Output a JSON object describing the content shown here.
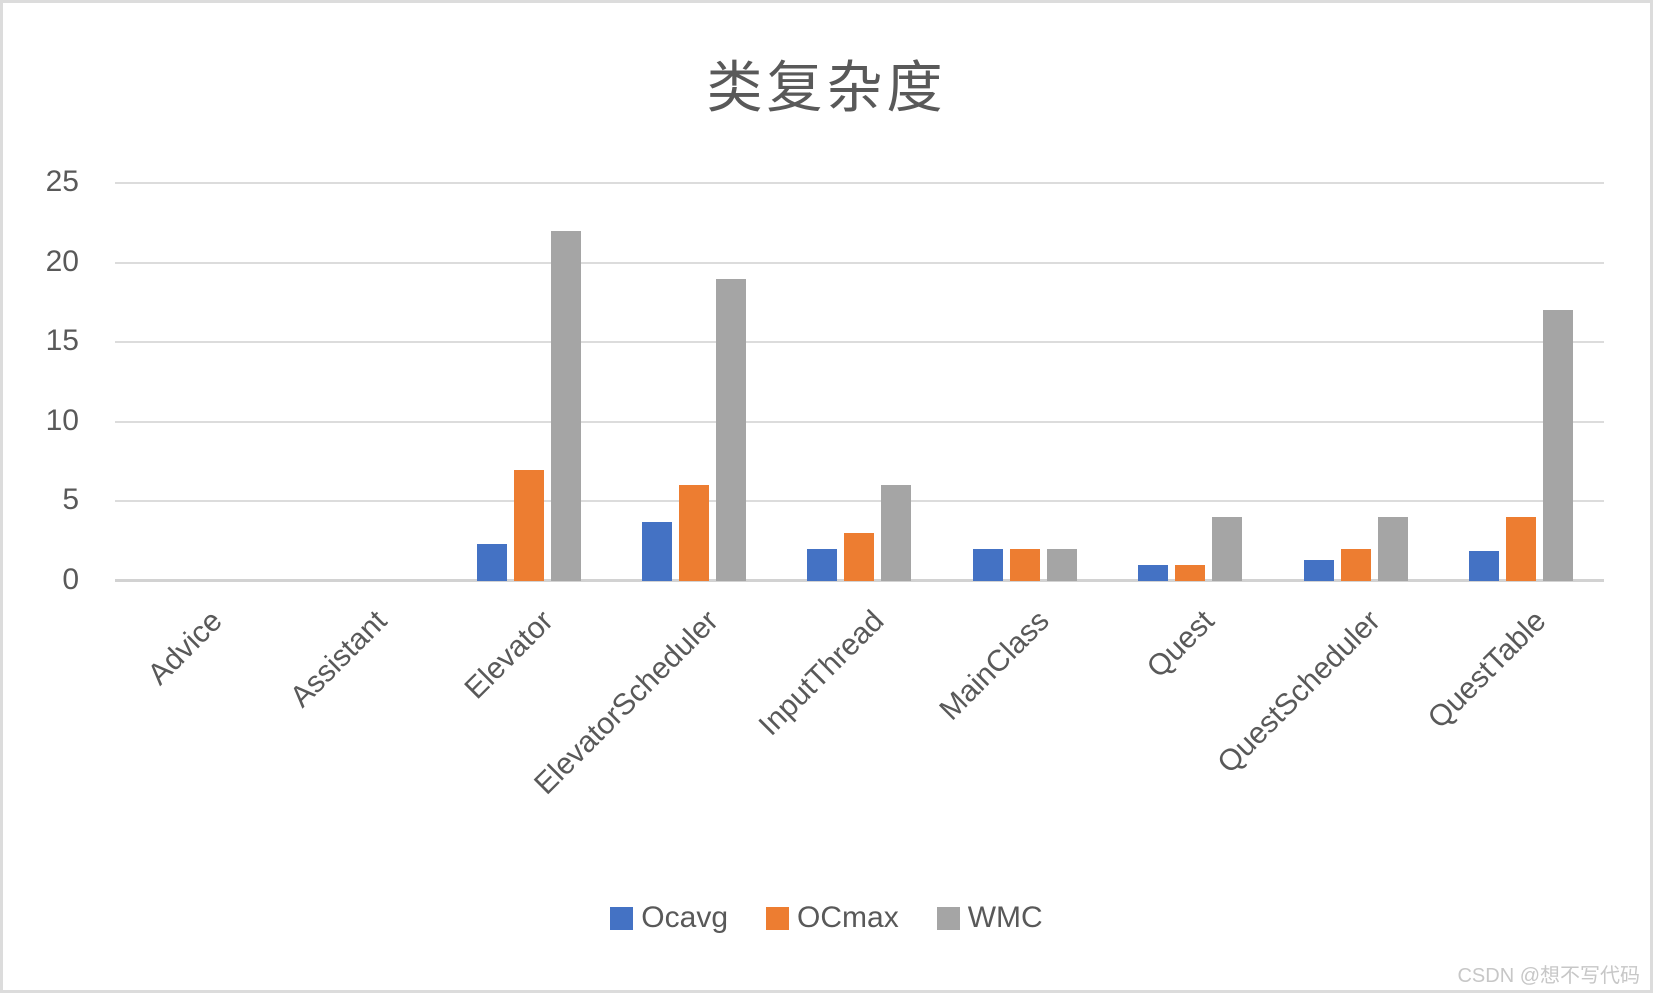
{
  "title": "类复杂度",
  "watermark": "CSDN @想不写代码",
  "chart_data": {
    "type": "bar",
    "title": "类复杂度",
    "categories": [
      "Advice",
      "Assistant",
      "Elevator",
      "ElevatorScheduler",
      "InputThread",
      "MainClass",
      "Quest",
      "QuestScheduler",
      "QuestTable"
    ],
    "series": [
      {
        "name": "Ocavg",
        "color": "#4472C4",
        "values": [
          0,
          0,
          2.33,
          3.7,
          2,
          2,
          1,
          1.33,
          1.89
        ]
      },
      {
        "name": "OCmax",
        "color": "#ED7D31",
        "values": [
          0,
          0,
          7,
          6,
          3,
          2,
          1,
          2,
          4
        ]
      },
      {
        "name": "WMC",
        "color": "#A5A5A5",
        "values": [
          0,
          0,
          22,
          19,
          6,
          2,
          4,
          4,
          17
        ]
      }
    ],
    "xlabel": "",
    "ylabel": "",
    "ylim": [
      0,
      25
    ],
    "yticks": [
      0,
      5,
      10,
      15,
      20,
      25
    ],
    "grid": true,
    "legend_position": "bottom",
    "colors": {
      "axis_text": "#595959",
      "gridline": "#DCDCDC",
      "title_text": "#595959"
    }
  }
}
